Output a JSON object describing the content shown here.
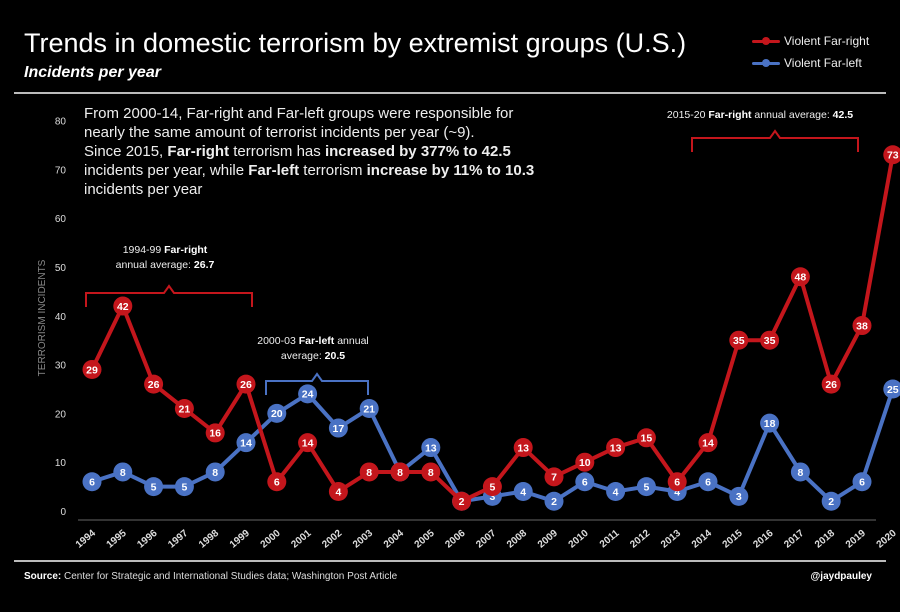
{
  "header": {
    "title": "Trends in domestic terrorism by extremist groups (U.S.)",
    "subtitle": "Incidents per year"
  },
  "legend": {
    "far_right": "Violent Far-right",
    "far_left": "Violent Far-left"
  },
  "annotation_main": {
    "line1": "From 2000-14, Far-right and Far-left groups were responsible for",
    "line2": "nearly the same amount of terrorist incidents per year (~9).",
    "line3_a": "Since 2015, ",
    "line3_b": "Far-right",
    "line3_c": " terrorism has ",
    "line3_d": "increased by 377% to 42.5",
    "line4_a": "incidents per year, while ",
    "line4_b": "Far-left",
    "line4_c": " terrorism ",
    "line4_d": "increase by 11% to 10.3",
    "line5": "incidents per year"
  },
  "annotation_1994": {
    "line1_a": "1994-99 ",
    "line1_b": "Far-right",
    "line2_a": "annual average: ",
    "line2_b": "26.7"
  },
  "annotation_2000": {
    "line1_a": "2000-03 ",
    "line1_b": "Far-left",
    "line1_c": " annual",
    "line2_a": "average: ",
    "line2_b": "20.5"
  },
  "annotation_2015": {
    "line1_a": "2015-20 ",
    "line1_b": "Far-right",
    "line1_c": " annual average: ",
    "line1_d": "42.5"
  },
  "footer": {
    "source_label": "Source:",
    "source_text": " Center for Strategic and International Studies data; Washington Post Article",
    "handle": "@jaydpauley"
  },
  "colors": {
    "far_right": "#c4161c",
    "far_left": "#4a72c4",
    "background": "#000000"
  },
  "chart_data": {
    "type": "line",
    "title": "Trends in domestic terrorism by extremist groups (U.S.)",
    "subtitle": "Incidents per year",
    "xlabel": "",
    "ylabel": "TERRORISM INCIDENTS",
    "ylim": [
      0,
      80
    ],
    "yticks": [
      0,
      10,
      20,
      30,
      40,
      50,
      60,
      70,
      80
    ],
    "categories": [
      "1994",
      "1995",
      "1996",
      "1997",
      "1998",
      "1999",
      "2000",
      "2001",
      "2002",
      "2003",
      "2004",
      "2005",
      "2006",
      "2007",
      "2008",
      "2009",
      "2010",
      "2011",
      "2012",
      "2013",
      "2014",
      "2015",
      "2016",
      "2017",
      "2018",
      "2019",
      "2020"
    ],
    "series": [
      {
        "name": "Violent Far-right",
        "color": "#c4161c",
        "values": [
          29,
          42,
          26,
          21,
          16,
          26,
          6,
          14,
          4,
          8,
          8,
          8,
          2,
          5,
          13,
          7,
          10,
          13,
          15,
          6,
          14,
          35,
          35,
          48,
          26,
          38,
          73
        ]
      },
      {
        "name": "Violent Far-left",
        "color": "#4a72c4",
        "values": [
          6,
          8,
          5,
          5,
          8,
          14,
          20,
          24,
          17,
          21,
          8,
          13,
          2,
          3,
          4,
          2,
          6,
          4,
          5,
          4,
          6,
          3,
          18,
          8,
          2,
          6,
          25
        ]
      }
    ],
    "legend_position": "top-right",
    "grid": false
  }
}
